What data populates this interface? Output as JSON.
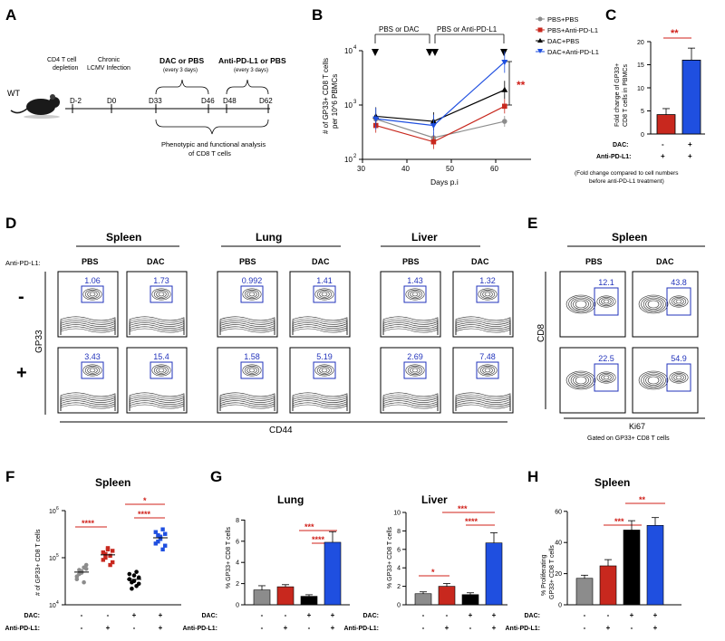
{
  "panel_letters": {
    "a": "A",
    "b": "B",
    "c": "C",
    "d": "D",
    "e": "E",
    "f": "F",
    "g": "G",
    "h": "H"
  },
  "panel_a": {
    "mouse_label": "WT",
    "timepoints": [
      "D-2",
      "D0",
      "D33",
      "D46",
      "D48",
      "D62"
    ],
    "event_depletion": [
      "CD4 T cell",
      "depletion"
    ],
    "event_infection": [
      "Chronic",
      "LCMV Infection"
    ],
    "treat1_title": "DAC or PBS",
    "treat1_sub": "(every 3 days)",
    "treat2_title": "Anti-PD-L1 or PBS",
    "treat2_sub": "(every 3 days)",
    "analysis": [
      "Phenotypic and functional analysis",
      "of CD8 T cells"
    ]
  },
  "panel_b": {
    "ylabel": [
      "# of GP33+ CD8 T cells",
      "per 10^6 PBMCs"
    ],
    "xlabel": "Days p.i",
    "xticks": [
      "30",
      "40",
      "50",
      "60"
    ],
    "yticks": [
      "10",
      "10",
      "10"
    ],
    "yexp": [
      "2",
      "3",
      "4"
    ],
    "phase1": "PBS or DAC",
    "phase2": "PBS or Anti-PD-L1",
    "significance": "**",
    "legend": [
      "PBS+PBS",
      "PBS+Anti-PD-L1",
      "DAC+PBS",
      "DAC+Anti-PD-L1"
    ]
  },
  "panel_c": {
    "ylabel": [
      "Fold change of GP33+",
      "CD8 T cells in PBMCs"
    ],
    "yticks": [
      "0",
      "5",
      "10",
      "15",
      "20"
    ],
    "significance": "**",
    "dac_label": "DAC:",
    "dac_values": [
      "-",
      "+"
    ],
    "pd_label": "Anti-PD-L1:",
    "pd_values": [
      "+",
      "+"
    ],
    "footnote": [
      "(Fold change compared to  cell numbers",
      "before anti-PD-L1 treatment)"
    ]
  },
  "panel_d": {
    "row_label": "Anti-PD-L1:",
    "row_signs": [
      "-",
      "+"
    ],
    "tissues": [
      "Spleen",
      "Lung",
      "Liver"
    ],
    "conditions": [
      "PBS",
      "DAC",
      "PBS",
      "DAC",
      "PBS",
      "DAC"
    ],
    "gate_values_minus": [
      "1.06",
      "1.73",
      "0.992",
      "1.41",
      "1.43",
      "1.32"
    ],
    "gate_values_plus": [
      "3.43",
      "15.4",
      "1.58",
      "5.19",
      "2.69",
      "7.48"
    ],
    "yaxis": "GP33",
    "xaxis": "CD44"
  },
  "panel_e": {
    "title": "Spleen",
    "conditions": [
      "PBS",
      "DAC"
    ],
    "gate_values_top": [
      "12.1",
      "43.8"
    ],
    "gate_values_bottom": [
      "22.5",
      "54.9"
    ],
    "yaxis": "CD8",
    "xaxis": "Ki67",
    "caption": "Gated on GP33+ CD8 T cells"
  },
  "panel_f": {
    "title": "Spleen",
    "ylabel": "# of GP33+ CD8 T cells",
    "yticks": [
      "10",
      "10",
      "10"
    ],
    "yexp": [
      "4",
      "5",
      "6"
    ],
    "sig": [
      "****",
      "*",
      "****"
    ]
  },
  "panel_g_lung": {
    "title": "Lung",
    "ylabel": "% GP33+ CD8 T cells",
    "yticks": [
      "0",
      "2",
      "4",
      "6",
      "8"
    ],
    "sig": [
      "***",
      "****"
    ]
  },
  "panel_g_liver": {
    "title": "Liver",
    "ylabel": "% GP33+ CD8 T cells",
    "yticks": [
      "0",
      "2",
      "4",
      "6",
      "8",
      "10"
    ],
    "sig": [
      "*",
      "***",
      "****"
    ]
  },
  "panel_h": {
    "title": "Spleen",
    "ylabel": [
      "% Proliferating",
      "GP33+ CD8 T cells"
    ],
    "yticks": [
      "0",
      "20",
      "40",
      "60"
    ],
    "sig": [
      "***",
      "**"
    ]
  },
  "group_rows": {
    "dac_label": "DAC:",
    "pd_label": "Anti-PD-L1:",
    "dac_values": [
      "-",
      "-",
      "+",
      "+"
    ],
    "pd_values": [
      "-",
      "+",
      "-",
      "+"
    ]
  },
  "colors": {
    "pbs": "#8c8c8c",
    "pd": "#c8281e",
    "dac": "#000000",
    "combo": "#1f4fe0",
    "sig": "#d0201a",
    "gate": "#2233bb"
  },
  "chart_data": [
    {
      "type": "line",
      "panel": "B",
      "xlabel": "Days p.i",
      "xlim": [
        28,
        64
      ],
      "ylog": true,
      "ylim": [
        100,
        10000
      ],
      "series": [
        {
          "name": "PBS+PBS",
          "x": [
            33,
            46,
            62
          ],
          "y": [
            550,
            250,
            500
          ]
        },
        {
          "name": "PBS+Anti-PD-L1",
          "x": [
            33,
            46,
            62
          ],
          "y": [
            420,
            210,
            950
          ]
        },
        {
          "name": "DAC+PBS",
          "x": [
            33,
            46,
            62
          ],
          "y": [
            620,
            500,
            1900
          ]
        },
        {
          "name": "DAC+Anti-PD-L1",
          "x": [
            33,
            46,
            62
          ],
          "y": [
            560,
            420,
            6200
          ]
        }
      ]
    },
    {
      "type": "bar",
      "panel": "C",
      "categories": [
        "DAC- / Anti-PD-L1+",
        "DAC+ / Anti-PD-L1+"
      ],
      "values": [
        4.2,
        16
      ],
      "ylim": [
        0,
        20
      ]
    },
    {
      "type": "scatter",
      "panel": "F",
      "ylog": true,
      "ylim": [
        10000,
        1000000
      ],
      "categories": [
        "PBS+PBS",
        "PBS+Anti-PD-L1",
        "DAC+PBS",
        "DAC+Anti-PD-L1"
      ],
      "series": [
        {
          "name": "PBS+PBS",
          "values": [
            40000,
            55000,
            48000,
            62000,
            70000,
            35000,
            45000,
            52000,
            30000,
            58000
          ]
        },
        {
          "name": "PBS+Anti-PD-L1",
          "values": [
            90000,
            120000,
            150000,
            110000,
            80000,
            130000,
            100000,
            160000,
            70000,
            140000
          ]
        },
        {
          "name": "DAC+PBS",
          "values": [
            35000,
            30000,
            42000,
            25000,
            38000,
            45000,
            22000,
            32000,
            50000,
            28000
          ]
        },
        {
          "name": "DAC+Anti-PD-L1",
          "values": [
            200000,
            300000,
            250000,
            400000,
            180000,
            350000,
            220000,
            280000,
            150000,
            320000
          ]
        }
      ]
    },
    {
      "type": "bar",
      "panel": "G-Lung",
      "categories": [
        "PBS+PBS",
        "PBS+Anti-PD-L1",
        "DAC+PBS",
        "DAC+Anti-PD-L1"
      ],
      "values": [
        1.4,
        1.7,
        0.8,
        5.9
      ],
      "errors": [
        0.4,
        0.2,
        0.15,
        1.0
      ],
      "ylim": [
        0,
        8
      ]
    },
    {
      "type": "bar",
      "panel": "G-Liver",
      "categories": [
        "PBS+PBS",
        "PBS+Anti-PD-L1",
        "DAC+PBS",
        "DAC+Anti-PD-L1"
      ],
      "values": [
        1.2,
        2.0,
        1.1,
        6.7
      ],
      "errors": [
        0.2,
        0.3,
        0.2,
        1.1
      ],
      "ylim": [
        0,
        10
      ]
    },
    {
      "type": "bar",
      "panel": "H",
      "categories": [
        "PBS+PBS",
        "PBS+Anti-PD-L1",
        "DAC+PBS",
        "DAC+Anti-PD-L1"
      ],
      "values": [
        17,
        25,
        48,
        51
      ],
      "errors": [
        2,
        4,
        6,
        5
      ],
      "ylim": [
        0,
        60
      ]
    }
  ]
}
